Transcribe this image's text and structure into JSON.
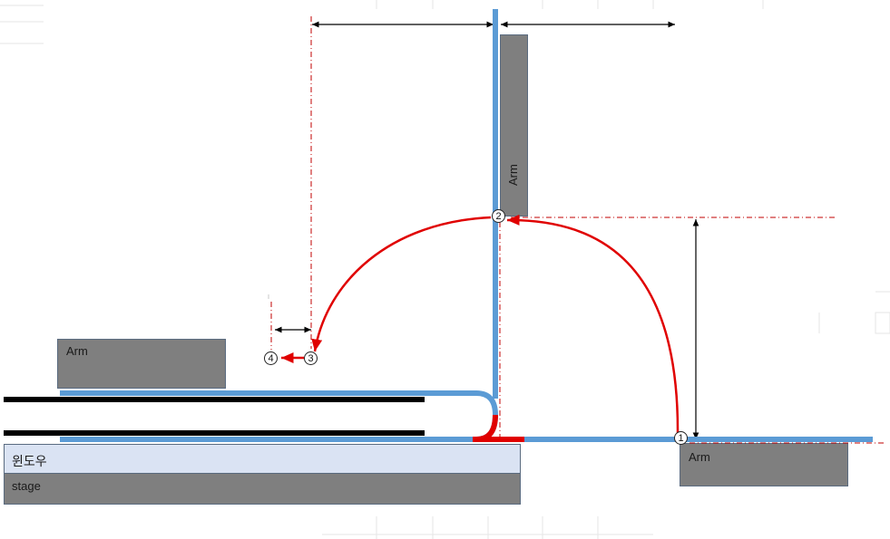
{
  "labels": {
    "arm_top": "Arm",
    "arm_left": "Arm",
    "arm_right": "Arm",
    "window": "윈도우",
    "stage": "stage"
  },
  "markers": {
    "m1": "1",
    "m2": "2",
    "m3": "3",
    "m4": "4"
  },
  "colors": {
    "belt": "#5b9bd5",
    "path": "#e00000",
    "arm": "#7f7f7f",
    "window": "#dae3f3",
    "dim_line": "#000000",
    "guide_line": "#c00000"
  }
}
